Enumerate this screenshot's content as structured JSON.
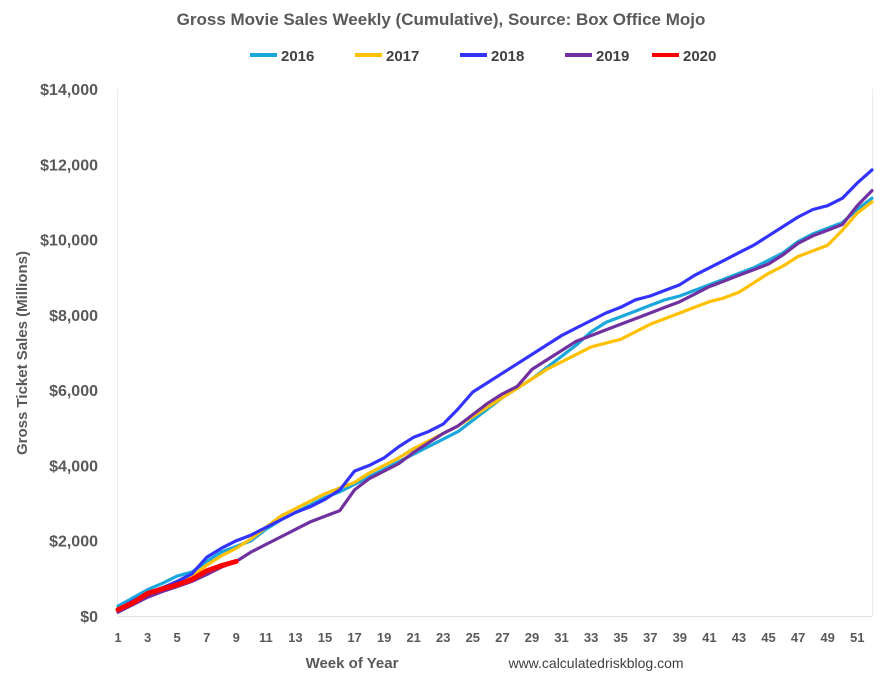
{
  "chart_data": {
    "type": "line",
    "title": "Gross Movie Sales Weekly (Cumulative), Source: Box Office Mojo",
    "xlabel": "Week of Year",
    "ylabel": "Gross Ticket Sales (Millions)",
    "source_text": "www.calculatedriskblog.com",
    "xlim": [
      1,
      52
    ],
    "ylim": [
      0,
      14000
    ],
    "yticks": [
      0,
      2000,
      4000,
      6000,
      8000,
      10000,
      12000,
      14000
    ],
    "ytick_labels": [
      "$0",
      "$2,000",
      "$4,000",
      "$6,000",
      "$8,000",
      "$10,000",
      "$12,000",
      "$14,000"
    ],
    "xticks": [
      1,
      3,
      5,
      7,
      9,
      11,
      13,
      15,
      17,
      19,
      21,
      23,
      25,
      27,
      29,
      31,
      33,
      35,
      37,
      39,
      41,
      43,
      45,
      47,
      49,
      51
    ],
    "xtick_labels": [
      "1",
      "3",
      "5",
      "7",
      "9",
      "11",
      "13",
      "15",
      "17",
      "19",
      "21",
      "23",
      "25",
      "27",
      "29",
      "31",
      "33",
      "35",
      "37",
      "39",
      "41",
      "43",
      "45",
      "47",
      "49",
      "51"
    ],
    "grid": "vertical",
    "legend_position": "top",
    "series": [
      {
        "name": "2016",
        "color": "#1aa7dc",
        "x": [
          1,
          2,
          3,
          4,
          5,
          6,
          7,
          8,
          9,
          10,
          11,
          12,
          13,
          14,
          15,
          16,
          17,
          18,
          19,
          20,
          21,
          22,
          23,
          24,
          25,
          26,
          27,
          28,
          29,
          30,
          31,
          32,
          33,
          34,
          35,
          36,
          37,
          38,
          39,
          40,
          41,
          42,
          43,
          44,
          45,
          46,
          47,
          48,
          49,
          50,
          51,
          52
        ],
        "values": [
          260,
          480,
          700,
          870,
          1060,
          1170,
          1450,
          1700,
          1850,
          2000,
          2300,
          2550,
          2750,
          2950,
          3150,
          3300,
          3500,
          3700,
          3900,
          4100,
          4300,
          4500,
          4700,
          4900,
          5200,
          5500,
          5800,
          6050,
          6300,
          6600,
          6900,
          7200,
          7550,
          7800,
          7950,
          8100,
          8250,
          8400,
          8500,
          8650,
          8800,
          8950,
          9100,
          9250,
          9450,
          9650,
          9950,
          10150,
          10300,
          10450,
          10800,
          11100
        ]
      },
      {
        "name": "2017",
        "color": "#ffc000",
        "x": [
          1,
          2,
          3,
          4,
          5,
          6,
          7,
          8,
          9,
          10,
          11,
          12,
          13,
          14,
          15,
          16,
          17,
          18,
          19,
          20,
          21,
          22,
          23,
          24,
          25,
          26,
          27,
          28,
          29,
          30,
          31,
          32,
          33,
          34,
          35,
          36,
          37,
          38,
          39,
          40,
          41,
          42,
          43,
          44,
          45,
          46,
          47,
          48,
          49,
          50,
          51,
          52
        ],
        "values": [
          180,
          380,
          600,
          750,
          900,
          1050,
          1350,
          1600,
          1800,
          2050,
          2350,
          2650,
          2850,
          3050,
          3250,
          3400,
          3550,
          3800,
          4000,
          4200,
          4450,
          4650,
          4850,
          5050,
          5300,
          5550,
          5800,
          6050,
          6300,
          6550,
          6750,
          6950,
          7150,
          7250,
          7350,
          7550,
          7750,
          7900,
          8050,
          8200,
          8350,
          8450,
          8600,
          8850,
          9100,
          9300,
          9550,
          9700,
          9850,
          10250,
          10700,
          11000
        ]
      },
      {
        "name": "2018",
        "color": "#3333ff",
        "x": [
          1,
          2,
          3,
          4,
          5,
          6,
          7,
          8,
          9,
          10,
          11,
          12,
          13,
          14,
          15,
          16,
          17,
          18,
          19,
          20,
          21,
          22,
          23,
          24,
          25,
          26,
          27,
          28,
          29,
          30,
          31,
          32,
          33,
          34,
          35,
          36,
          37,
          38,
          39,
          40,
          41,
          42,
          43,
          44,
          45,
          46,
          47,
          48,
          49,
          50,
          51,
          52
        ],
        "values": [
          170,
          400,
          600,
          750,
          920,
          1120,
          1560,
          1800,
          2000,
          2150,
          2350,
          2550,
          2750,
          2900,
          3100,
          3350,
          3850,
          4000,
          4200,
          4500,
          4750,
          4900,
          5100,
          5500,
          5950,
          6200,
          6450,
          6700,
          6950,
          7200,
          7450,
          7650,
          7850,
          8050,
          8200,
          8400,
          8500,
          8650,
          8800,
          9050,
          9250,
          9450,
          9650,
          9850,
          10100,
          10350,
          10600,
          10800,
          10900,
          11100,
          11500,
          11850
        ]
      },
      {
        "name": "2019",
        "color": "#7030a0",
        "x": [
          1,
          2,
          3,
          4,
          5,
          6,
          7,
          8,
          9,
          10,
          11,
          12,
          13,
          14,
          15,
          16,
          17,
          18,
          19,
          20,
          21,
          22,
          23,
          24,
          25,
          26,
          27,
          28,
          29,
          30,
          31,
          32,
          33,
          34,
          35,
          36,
          37,
          38,
          39,
          40,
          41,
          42,
          43,
          44,
          45,
          46,
          47,
          48,
          49,
          50,
          51,
          52
        ],
        "values": [
          100,
          300,
          500,
          650,
          780,
          920,
          1100,
          1300,
          1450,
          1700,
          1900,
          2100,
          2300,
          2500,
          2650,
          2800,
          3350,
          3650,
          3850,
          4050,
          4350,
          4600,
          4850,
          5050,
          5350,
          5650,
          5900,
          6100,
          6550,
          6800,
          7050,
          7300,
          7450,
          7600,
          7750,
          7900,
          8050,
          8200,
          8350,
          8550,
          8750,
          8900,
          9050,
          9200,
          9350,
          9600,
          9900,
          10100,
          10250,
          10400,
          10900,
          11300
        ]
      },
      {
        "name": "2020",
        "color": "#ff0000",
        "x": [
          1,
          2,
          3,
          4,
          5,
          6,
          7,
          8,
          9
        ],
        "values": [
          170,
          350,
          600,
          720,
          830,
          970,
          1200,
          1340,
          1450
        ]
      }
    ]
  }
}
